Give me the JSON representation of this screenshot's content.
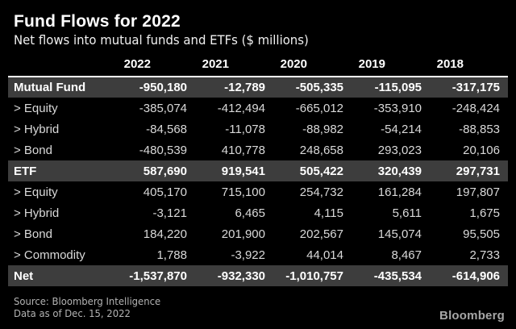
{
  "header": {
    "title": "Fund Flows for 2022",
    "subtitle": "Net flows into mutual funds and ETFs ($ millions)"
  },
  "table": {
    "columns": [
      "2022",
      "2021",
      "2020",
      "2019",
      "2018"
    ],
    "rows": [
      {
        "label": "Mutual Fund",
        "type": "section",
        "values": [
          "-950,180",
          "-12,789",
          "-505,335",
          "-115,095",
          "-317,175"
        ]
      },
      {
        "label": "> Equity",
        "type": "sub",
        "values": [
          "-385,074",
          "-412,494",
          "-665,012",
          "-353,910",
          "-248,424"
        ]
      },
      {
        "label": "> Hybrid",
        "type": "sub",
        "values": [
          "-84,568",
          "-11,078",
          "-88,982",
          "-54,214",
          "-88,853"
        ]
      },
      {
        "label": "> Bond",
        "type": "sub",
        "values": [
          "-480,539",
          "410,778",
          "248,658",
          "293,023",
          "20,106"
        ]
      },
      {
        "label": "ETF",
        "type": "section",
        "values": [
          "587,690",
          "919,541",
          "505,422",
          "320,439",
          "297,731"
        ]
      },
      {
        "label": "> Equity",
        "type": "sub",
        "values": [
          "405,170",
          "715,100",
          "254,732",
          "161,284",
          "197,807"
        ]
      },
      {
        "label": "> Hybrid",
        "type": "sub",
        "values": [
          "-3,121",
          "6,465",
          "4,115",
          "5,611",
          "1,675"
        ]
      },
      {
        "label": "> Bond",
        "type": "sub",
        "values": [
          "184,220",
          "201,900",
          "202,567",
          "145,074",
          "95,505"
        ]
      },
      {
        "label": "> Commodity",
        "type": "sub",
        "values": [
          "1,788",
          "-3,922",
          "44,014",
          "8,467",
          "2,733"
        ]
      },
      {
        "label": "Net",
        "type": "section",
        "values": [
          "-1,537,870",
          "-932,330",
          "-1,010,757",
          "-435,534",
          "-614,906"
        ]
      }
    ]
  },
  "footer": {
    "source_line1": "Source: Bloomberg Intelligence",
    "source_line2": "Data as of Dec. 15, 2022",
    "brand": "Bloomberg"
  },
  "colors": {
    "background": "#000000",
    "highlight_row": "#3d3d3d",
    "divider": "#ffffff",
    "body_text": "#d9d9d9",
    "bold_text": "#ffffff",
    "muted_text": "#b3b3b3",
    "brand_text": "#a6a6a6"
  },
  "chart_data": {
    "type": "table",
    "title": "Fund Flows for 2022",
    "subtitle": "Net flows into mutual funds and ETFs ($ millions)",
    "unit": "$ millions",
    "columns": [
      "2022",
      "2021",
      "2020",
      "2019",
      "2018"
    ],
    "rows": [
      {
        "label": "Mutual Fund",
        "group": "section",
        "values": [
          -950180,
          -12789,
          -505335,
          -115095,
          -317175
        ]
      },
      {
        "label": "Equity",
        "group": "Mutual Fund",
        "values": [
          -385074,
          -412494,
          -665012,
          -353910,
          -248424
        ]
      },
      {
        "label": "Hybrid",
        "group": "Mutual Fund",
        "values": [
          -84568,
          -11078,
          -88982,
          -54214,
          -88853
        ]
      },
      {
        "label": "Bond",
        "group": "Mutual Fund",
        "values": [
          -480539,
          410778,
          248658,
          293023,
          20106
        ]
      },
      {
        "label": "ETF",
        "group": "section",
        "values": [
          587690,
          919541,
          505422,
          320439,
          297731
        ]
      },
      {
        "label": "Equity",
        "group": "ETF",
        "values": [
          405170,
          715100,
          254732,
          161284,
          197807
        ]
      },
      {
        "label": "Hybrid",
        "group": "ETF",
        "values": [
          -3121,
          6465,
          4115,
          5611,
          1675
        ]
      },
      {
        "label": "Bond",
        "group": "ETF",
        "values": [
          184220,
          201900,
          202567,
          145074,
          95505
        ]
      },
      {
        "label": "Commodity",
        "group": "ETF",
        "values": [
          1788,
          -3922,
          44014,
          8467,
          2733
        ]
      },
      {
        "label": "Net",
        "group": "section",
        "values": [
          -1537870,
          -932330,
          -1010757,
          -435534,
          -614906
        ]
      }
    ],
    "source": "Bloomberg Intelligence",
    "as_of": "Dec. 15, 2022"
  }
}
